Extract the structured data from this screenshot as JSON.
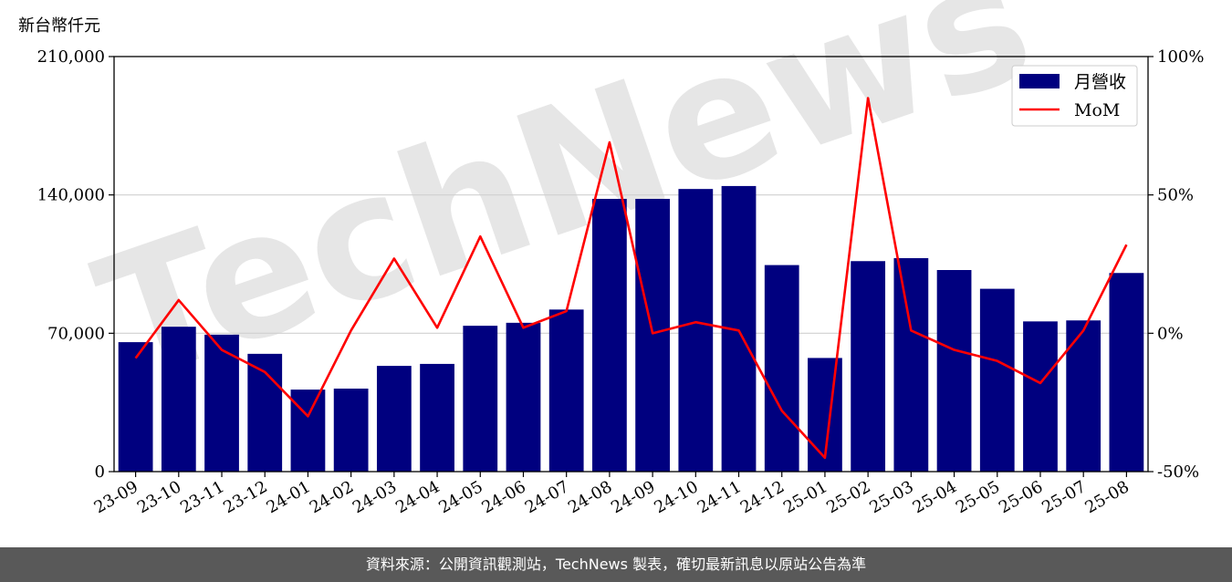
{
  "unit_label": "新台幣仟元",
  "watermark": "TechNews",
  "footer_text": "資料來源：公開資訊觀測站，TechNews 製表，確切最新訊息以原站公告為準",
  "colors": {
    "bar": "#00007f",
    "line": "#ff0000",
    "grid": "#d0d0d0",
    "watermark": "#e6e6e6",
    "watermark_accent": "#f5dada",
    "footer_bg": "#595959"
  },
  "chart_data": {
    "type": "bar",
    "categories": [
      "23-09",
      "23-10",
      "23-11",
      "23-12",
      "24-01",
      "24-02",
      "24-03",
      "24-04",
      "24-05",
      "24-06",
      "24-07",
      "24-08",
      "24-09",
      "24-10",
      "24-11",
      "24-12",
      "25-01",
      "25-02",
      "25-03",
      "25-04",
      "25-05",
      "25-06",
      "25-07",
      "25-08"
    ],
    "series": [
      {
        "name": "月營收",
        "type": "bar",
        "axis": "left",
        "values": [
          65500,
          73300,
          69300,
          59600,
          41500,
          42000,
          53500,
          54500,
          73800,
          75300,
          82000,
          138000,
          138000,
          143000,
          144500,
          104500,
          57500,
          106500,
          108000,
          102000,
          92500,
          76000,
          76500,
          100500
        ]
      },
      {
        "name": "MoM",
        "type": "line",
        "axis": "right",
        "values": [
          -9,
          12,
          -6,
          -14,
          -30,
          1,
          27,
          2,
          35,
          2,
          8,
          69,
          0,
          4,
          1,
          -28,
          -45,
          85,
          1,
          -6,
          -10,
          -18,
          1,
          32
        ]
      }
    ],
    "left_axis": {
      "ylim": [
        0,
        210000
      ],
      "ticks": [
        "0",
        "70,000",
        "140,000",
        "210,000"
      ],
      "tick_values": [
        0,
        70000,
        140000,
        210000
      ]
    },
    "right_axis": {
      "ylim": [
        -50,
        100
      ],
      "ticks": [
        "-50%",
        "0%",
        "50%",
        "100%"
      ],
      "tick_values": [
        -50,
        0,
        50,
        100
      ]
    },
    "grid": "horizontal",
    "legend": "top-right"
  }
}
